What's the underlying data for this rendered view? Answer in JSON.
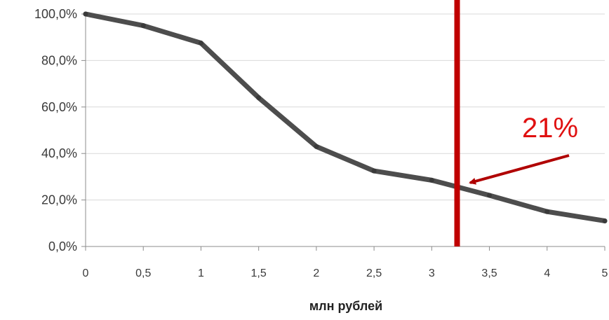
{
  "chart_data": {
    "type": "line",
    "x": [
      0,
      0.5,
      1,
      1.5,
      2,
      2.5,
      3,
      3.5,
      4,
      5
    ],
    "x_tick_labels": [
      "0",
      "0,5",
      "1",
      "1,5",
      "2",
      "2,5",
      "3",
      "3,5",
      "4",
      "5"
    ],
    "series": [
      {
        "values": [
          100,
          95,
          87.5,
          64,
          43,
          32.5,
          28.5,
          22,
          15,
          11
        ],
        "color": "#4d4d4d"
      }
    ],
    "y_tick_labels": [
      "0,0%",
      "20,0%",
      "40,0%",
      "60,0%",
      "80,0%",
      "100,0%"
    ],
    "y_ticks": [
      0,
      20,
      40,
      60,
      80,
      100
    ],
    "ylim": [
      0,
      100
    ],
    "xlabel": "млн рублей",
    "ylabel": "",
    "title": "",
    "grid": true,
    "vertical_marker": {
      "x": 3.22,
      "color": "#c00000"
    },
    "annotation": {
      "text": "21%",
      "color": "#e01010",
      "arrow_color": "#b00000"
    }
  }
}
